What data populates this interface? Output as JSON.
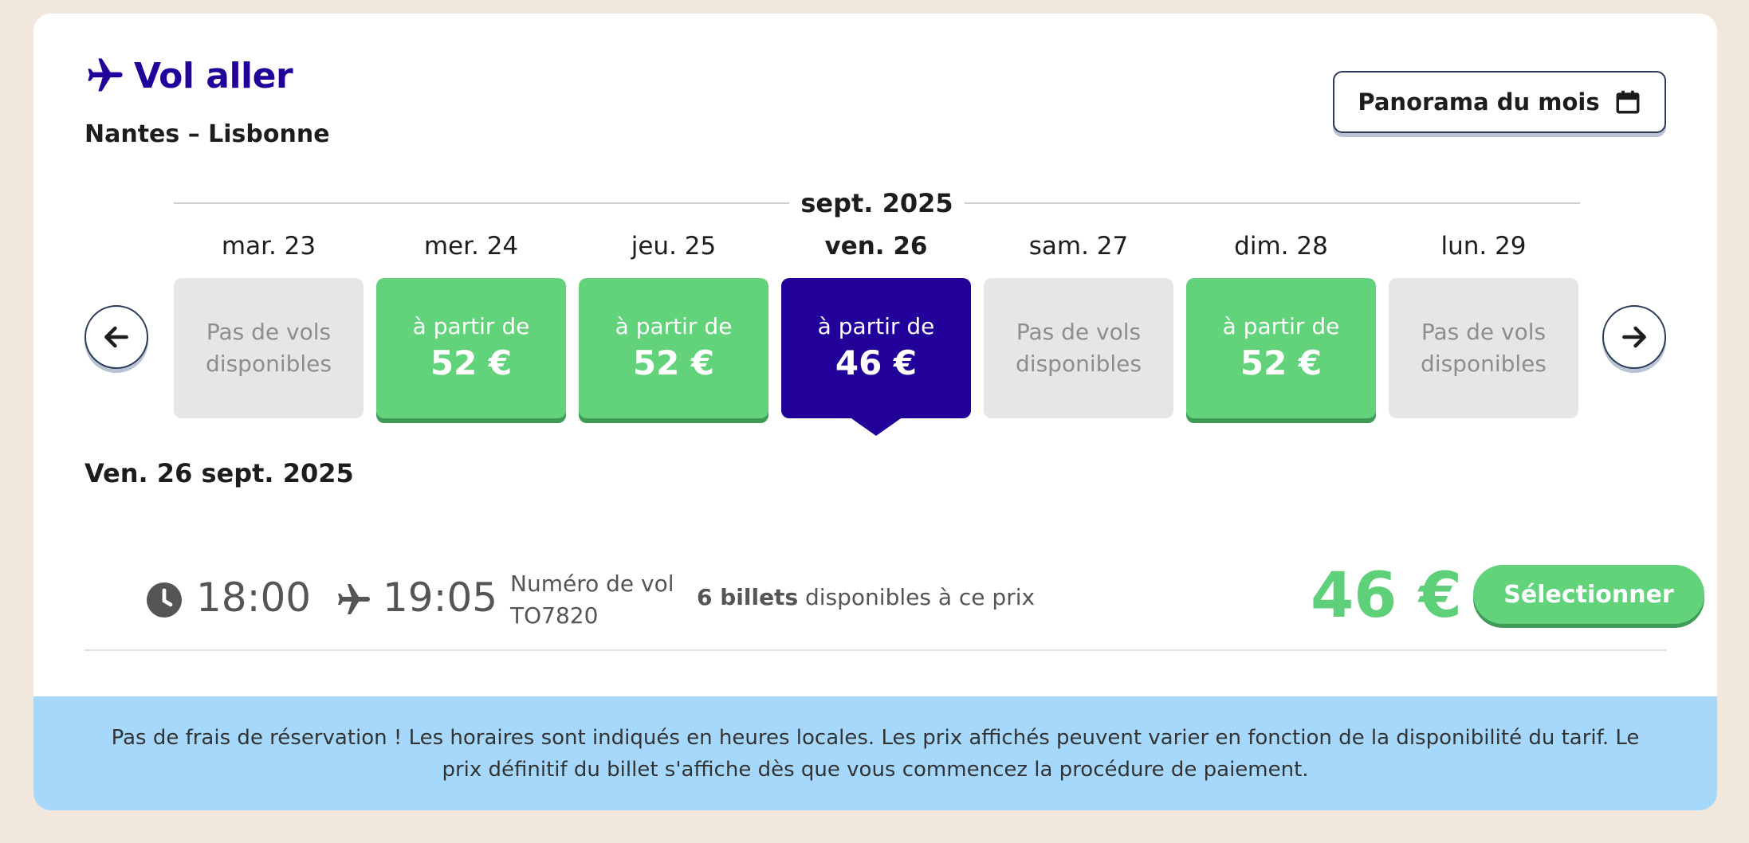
{
  "header": {
    "title": "Vol aller",
    "route": "Nantes – Lisbonne",
    "panorama_label": "Panorama du mois"
  },
  "calendar": {
    "month": "sept. 2025",
    "days": [
      {
        "label": "mar. 23",
        "status": "Pas de vols disponibles",
        "line1": "Pas de vols",
        "line2": "disponibles"
      },
      {
        "label": "mer. 24",
        "from": "à partir de",
        "price": "52 €"
      },
      {
        "label": "jeu. 25",
        "from": "à partir de",
        "price": "52 €"
      },
      {
        "label": "ven. 26",
        "from": "à partir de",
        "price": "46 €",
        "selected": true
      },
      {
        "label": "sam. 27",
        "line1": "Pas de vols",
        "line2": "disponibles"
      },
      {
        "label": "dim. 28",
        "from": "à partir de",
        "price": "52 €"
      },
      {
        "label": "lun. 29",
        "line1": "Pas de vols",
        "line2": "disponibles"
      }
    ]
  },
  "selected_date": "Ven. 26 sept. 2025",
  "flight": {
    "departure": "18:00",
    "arrival": "19:05",
    "number_label": "Numéro de vol",
    "number": "TO7820",
    "tickets_count": "6 billets",
    "tickets_text": " disponibles à ce prix",
    "price": "46 €",
    "select_label": "Sélectionner"
  },
  "notice": "Pas de frais de réservation ! Les horaires sont indiqués en heures locales. Les prix affichés peuvent varier en fonction de la disponibilité du tarif. Le prix définitif du billet s'affiche dès que vous commencez la procédure de paiement.",
  "colors": {
    "accent": "#22009a",
    "available": "#63d37b",
    "unavailable": "#e6e6e6",
    "notice_bg": "#a6d8fb"
  }
}
